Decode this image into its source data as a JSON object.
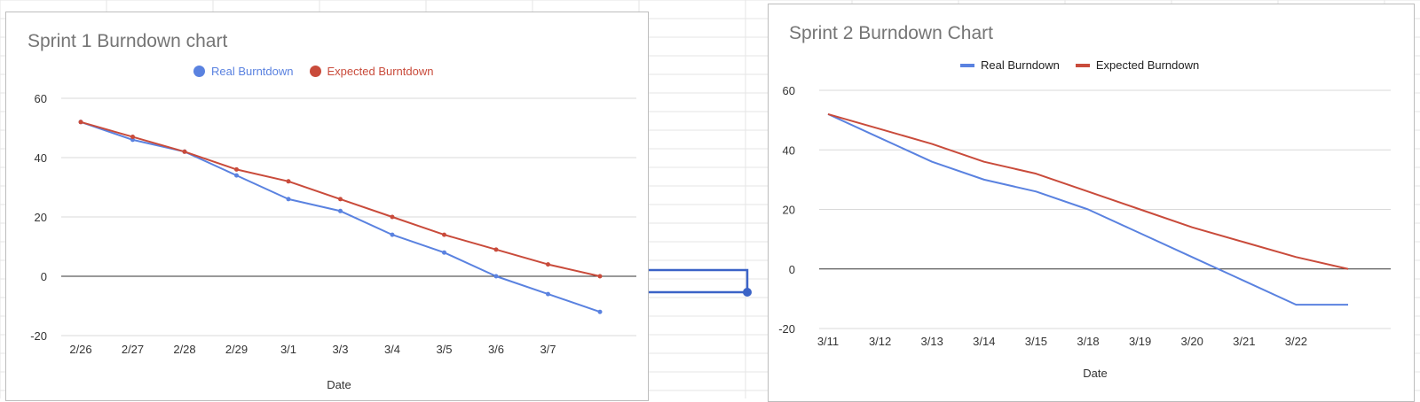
{
  "colors": {
    "real": "#5a82e0",
    "expected": "#c94b3b",
    "grid": "#d9d9d9",
    "zero_line": "#333333",
    "axis_text": "#333333",
    "title_text": "#757575",
    "sheet_grid": "#e6e6e6",
    "connector": "#3b63c7",
    "selection": "#d93025"
  },
  "chart_data": [
    {
      "type": "line",
      "title": "Sprint 1 Burndown chart",
      "xlabel": "Date",
      "ylabel": "",
      "ylim": [
        -20,
        60
      ],
      "yticks": [
        60,
        40,
        20,
        0,
        -20
      ],
      "markers": true,
      "legend_style": "dot",
      "legend_position": "top",
      "grid": true,
      "categories": [
        "2/26",
        "2/27",
        "2/28",
        "2/29",
        "3/1",
        "3/3",
        "3/4",
        "3/5",
        "3/6",
        "3/7",
        ""
      ],
      "series": [
        {
          "name": "Real Burntdown",
          "color_key": "real",
          "values": [
            52,
            46,
            42,
            34,
            26,
            22,
            14,
            8,
            0,
            -6,
            -12
          ]
        },
        {
          "name": "Expected Burntdown",
          "color_key": "expected",
          "values": [
            52,
            47,
            42,
            36,
            32,
            26,
            20,
            14,
            9,
            4,
            0
          ]
        }
      ]
    },
    {
      "type": "line",
      "title": "Sprint 2 Burndown Chart",
      "xlabel": "Date",
      "ylabel": "",
      "ylim": [
        -20,
        60
      ],
      "yticks": [
        60,
        40,
        20,
        0,
        -20
      ],
      "markers": false,
      "legend_style": "dash",
      "legend_position": "top",
      "grid": true,
      "categories": [
        "3/11",
        "3/12",
        "3/13",
        "3/14",
        "3/15",
        "3/18",
        "3/19",
        "3/20",
        "3/21",
        "3/22",
        ""
      ],
      "series": [
        {
          "name": "Real Burndown",
          "color_key": "real",
          "values": [
            52,
            44,
            36,
            30,
            26,
            20,
            12,
            4,
            -4,
            -12,
            -12
          ]
        },
        {
          "name": "Expected Burndown",
          "color_key": "expected",
          "values": [
            52,
            47,
            42,
            36,
            32,
            26,
            20,
            14,
            9,
            4,
            0
          ]
        }
      ]
    }
  ]
}
